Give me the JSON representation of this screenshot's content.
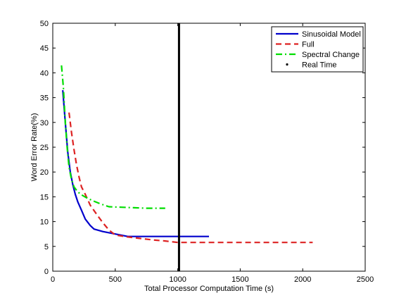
{
  "chart_data": {
    "type": "line",
    "title": "",
    "xlabel": "Total Processor Computation Time (s)",
    "ylabel": "Word Error Rate(%)",
    "xlim": [
      0,
      2500
    ],
    "ylim": [
      0,
      50
    ],
    "xticks": [
      0,
      500,
      1000,
      1500,
      2000,
      2500
    ],
    "yticks": [
      0,
      5,
      10,
      15,
      20,
      25,
      30,
      35,
      40,
      45,
      50
    ],
    "grid": false,
    "legend_position": "top-right",
    "series": [
      {
        "name": "Sinusoidal Model",
        "color": "#0000cc",
        "style": "solid",
        "x": [
          80,
          100,
          120,
          140,
          160,
          180,
          200,
          230,
          260,
          300,
          330,
          400,
          500,
          600,
          700,
          800,
          900,
          1000,
          1100,
          1250
        ],
        "y": [
          36.5,
          30,
          24,
          20,
          17.5,
          15.5,
          14,
          12.3,
          10.5,
          9.2,
          8.5,
          8,
          7.5,
          7,
          7,
          7,
          7,
          7,
          7,
          7
        ]
      },
      {
        "name": "Full",
        "color": "#dd2222",
        "style": "dashed",
        "x": [
          130,
          150,
          170,
          190,
          210,
          230,
          260,
          300,
          350,
          400,
          450,
          500,
          600,
          700,
          800,
          900,
          1000,
          1200,
          1400,
          1600,
          1800,
          2080
        ],
        "y": [
          32,
          28,
          24.5,
          21.5,
          19,
          17,
          15.5,
          13.3,
          11.5,
          9.8,
          8.3,
          7.3,
          6.9,
          6.6,
          6.3,
          6.1,
          5.8,
          5.8,
          5.8,
          5.8,
          5.8,
          5.8
        ]
      },
      {
        "name": "Spectral Change",
        "color": "#00dd00",
        "style": "dashdot",
        "x": [
          70,
          85,
          100,
          115,
          130,
          150,
          170,
          200,
          230,
          270,
          320,
          380,
          450,
          550,
          650,
          750,
          900
        ],
        "y": [
          41.5,
          37,
          30,
          25,
          21,
          18.5,
          17,
          16,
          15.4,
          14.8,
          14.2,
          13.6,
          13,
          12.9,
          12.8,
          12.7,
          12.7
        ]
      },
      {
        "name": "Real Time",
        "color": "#000000",
        "style": "solid-vertical",
        "x": [
          1010,
          1010
        ],
        "y": [
          0,
          50
        ]
      }
    ]
  }
}
